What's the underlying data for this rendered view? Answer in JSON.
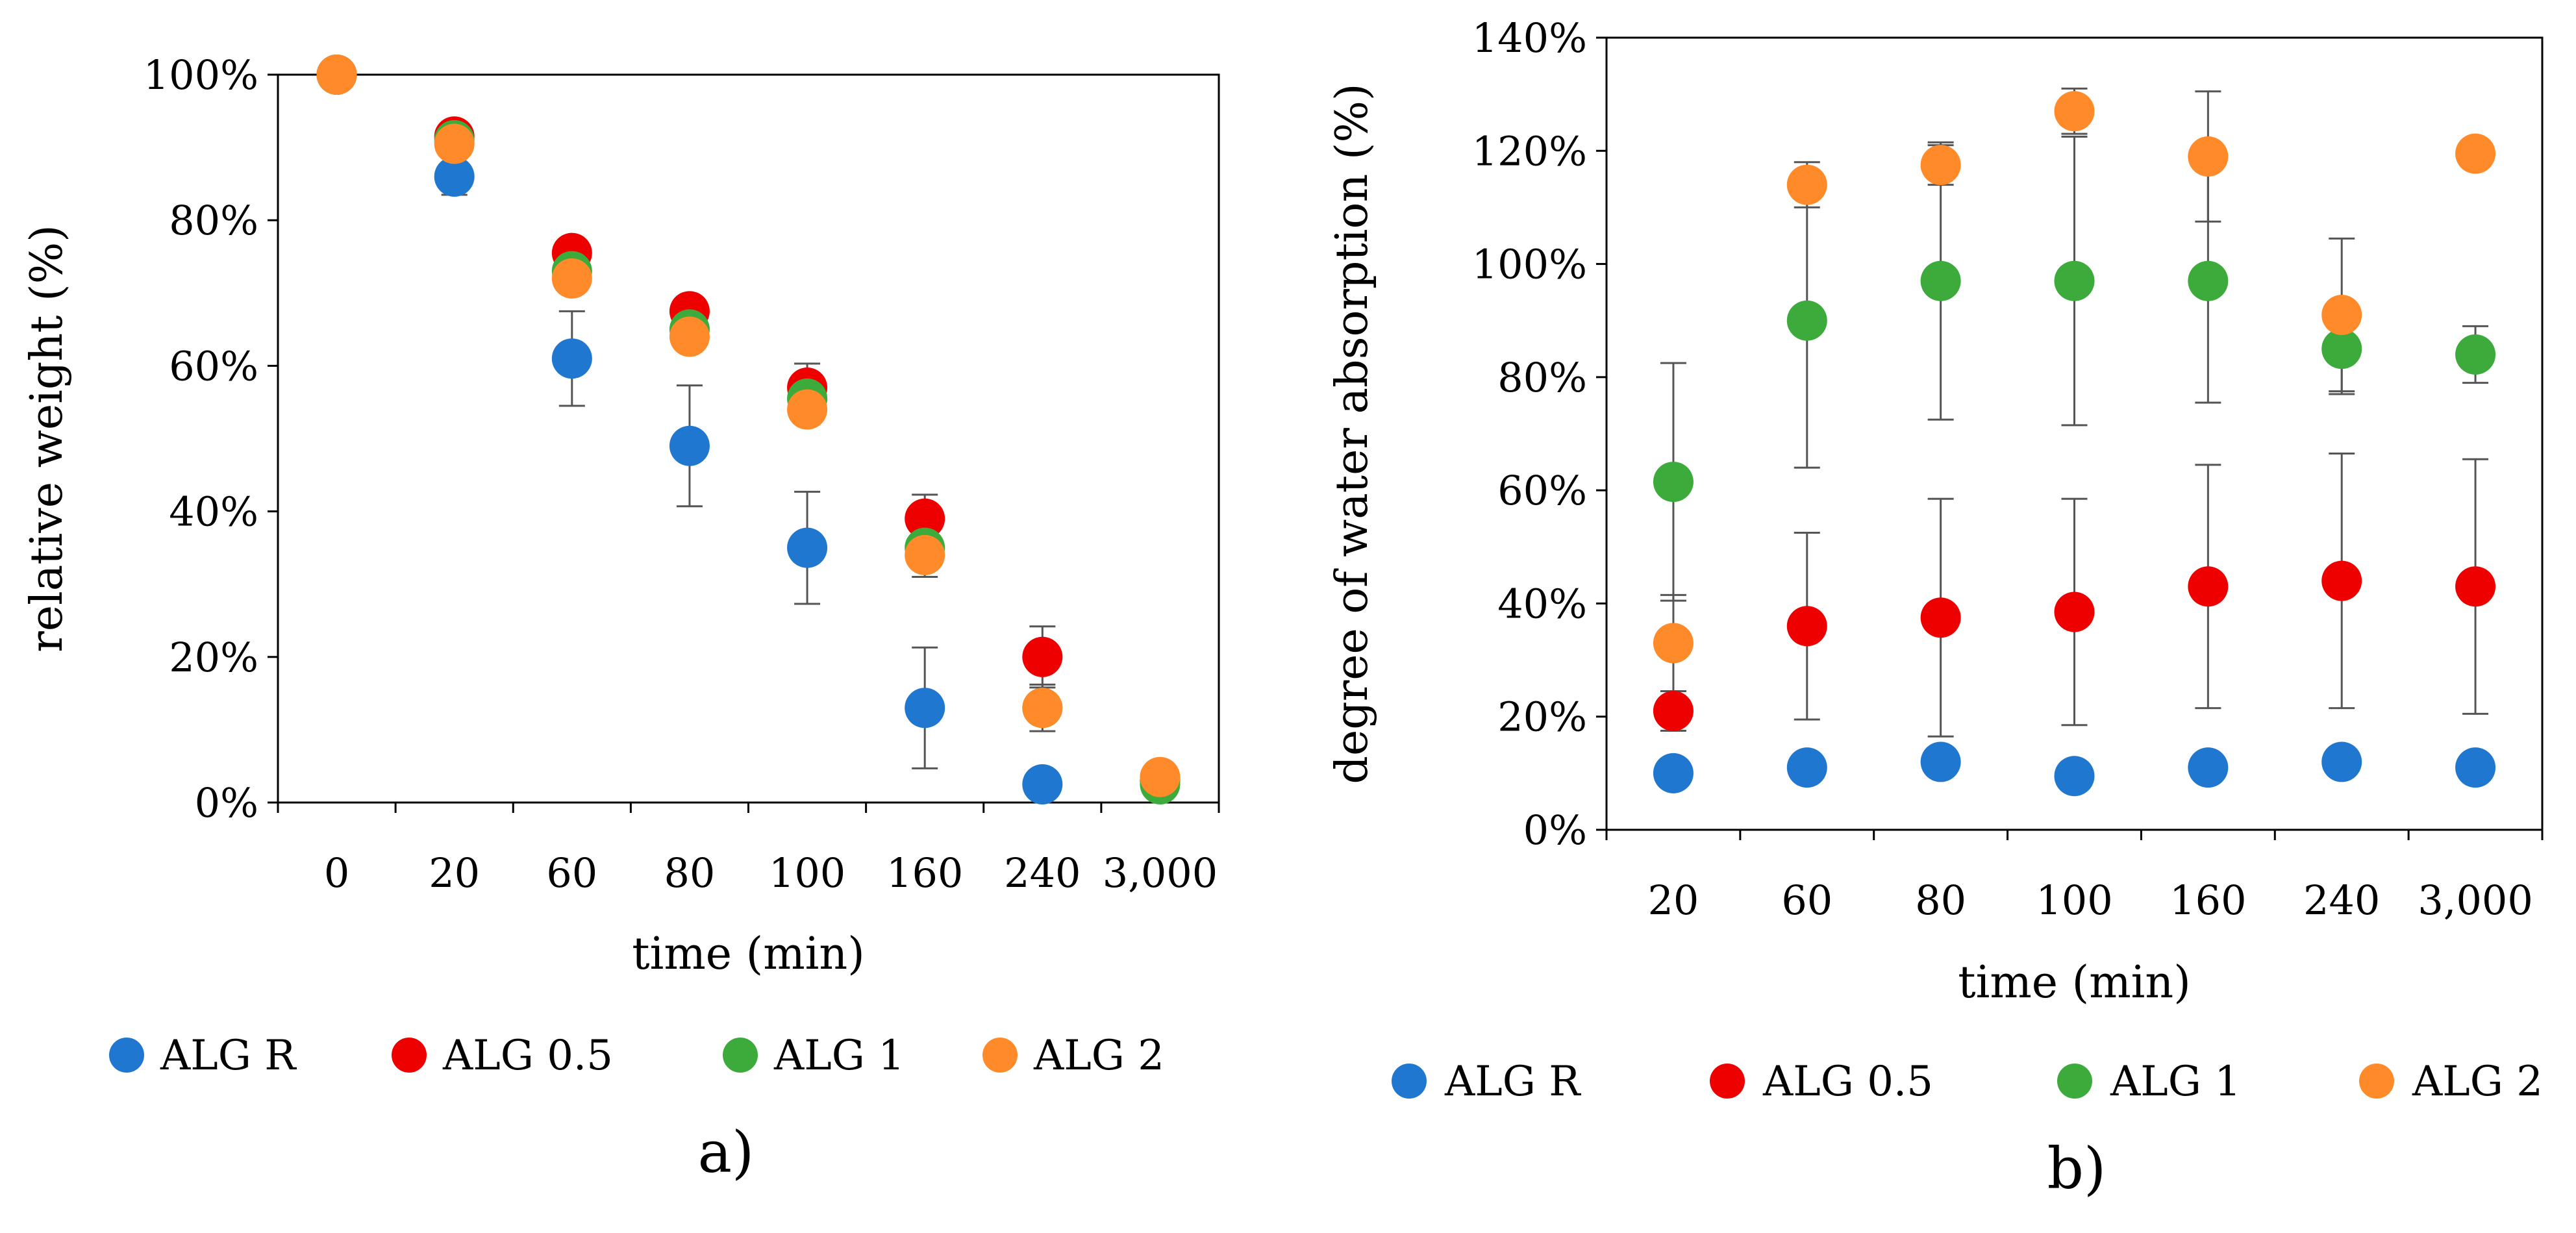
{
  "chart_data": [
    {
      "type": "scatter",
      "panel_label": "a)",
      "xlabel": "time (min)",
      "ylabel": "relative weight (%)",
      "categories": [
        "0",
        "20",
        "60",
        "80",
        "100",
        "160",
        "240",
        "3,000"
      ],
      "ylim": [
        0,
        100
      ],
      "y_ticks": [
        "0%",
        "20%",
        "40%",
        "60%",
        "80%",
        "100%"
      ],
      "grid": false,
      "legend_position": "bottom",
      "series": [
        {
          "name": "ALG R",
          "color": "#1f77d0",
          "values": [
            100,
            86,
            61,
            49,
            35,
            13,
            2.5,
            null
          ],
          "err": [
            null,
            2.5,
            6.5,
            8.3,
            7.7,
            8.3,
            1.2,
            null
          ]
        },
        {
          "name": "ALG 0.5",
          "color": "#ee0000",
          "values": [
            100,
            91.5,
            75.5,
            67.5,
            57,
            39,
            20,
            3
          ],
          "err": [
            null,
            null,
            null,
            null,
            3.3,
            3.3,
            4.2,
            null
          ]
        },
        {
          "name": "ALG 1",
          "color": "#3cab3c",
          "values": [
            100,
            91,
            73,
            65,
            55.5,
            35,
            13,
            2.5
          ],
          "err": [
            null,
            null,
            null,
            null,
            null,
            null,
            null,
            null
          ]
        },
        {
          "name": "ALG 2",
          "color": "#ff8a2a",
          "values": [
            100,
            90.5,
            72,
            64,
            54,
            34,
            13,
            3.5
          ],
          "err": [
            null,
            null,
            null,
            null,
            null,
            3,
            3.2,
            null
          ]
        }
      ]
    },
    {
      "type": "scatter",
      "panel_label": "b)",
      "xlabel": "time (min)",
      "ylabel": "degree of water absorption (%)",
      "categories": [
        "20",
        "60",
        "80",
        "100",
        "160",
        "240",
        "3,000"
      ],
      "ylim": [
        0,
        140
      ],
      "y_ticks": [
        "0%",
        "20%",
        "40%",
        "60%",
        "80%",
        "100%",
        "120%",
        "140%"
      ],
      "grid": false,
      "legend_position": "bottom",
      "series": [
        {
          "name": "ALG R",
          "color": "#1f77d0",
          "values": [
            10,
            11,
            12,
            9.5,
            11,
            12,
            11
          ],
          "err": [
            null,
            null,
            null,
            null,
            null,
            null,
            null
          ]
        },
        {
          "name": "ALG 0.5",
          "color": "#ee0000",
          "values": [
            21,
            36,
            37.5,
            38.5,
            43,
            44,
            43
          ],
          "err": [
            3.5,
            16.5,
            21,
            20,
            21.5,
            22.5,
            22.5
          ]
        },
        {
          "name": "ALG 1",
          "color": "#3cab3c",
          "values": [
            61.5,
            90,
            97,
            97,
            97,
            85,
            84
          ],
          "err": [
            21,
            26,
            24.5,
            25.5,
            21.5,
            8,
            5
          ]
        },
        {
          "name": "ALG 2",
          "color": "#ff8a2a",
          "values": [
            33,
            114,
            117.5,
            127,
            119,
            91,
            119.5
          ],
          "err": [
            8.5,
            4,
            3.5,
            4,
            11.5,
            13.5,
            null
          ]
        }
      ]
    }
  ]
}
